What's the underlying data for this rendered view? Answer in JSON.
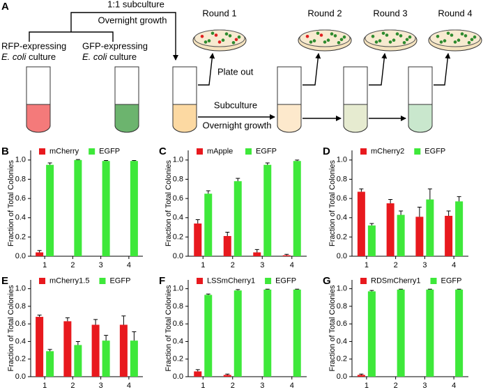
{
  "diagram": {
    "panel_label": "A",
    "top_label": "1:1 subculture",
    "top_sub": "Overnight growth",
    "rfp_label": [
      "RFP-expressing",
      "E. coli",
      "culture"
    ],
    "gfp_label": [
      "GFP-expressing",
      "E. coli",
      "culture"
    ],
    "plate_out": "Plate out",
    "subculture": "Subculture",
    "overnight": "Overnight growth",
    "rounds": [
      "Round 1",
      "Round 2",
      "Round 3",
      "Round 4"
    ]
  },
  "chart_data": [
    {
      "type": "bar",
      "panel_label": "B",
      "ylabel": "Fraction of Total Colonies",
      "categories": [
        "1",
        "2",
        "3",
        "4"
      ],
      "series": [
        {
          "name": "mCherry",
          "color": "#e8191e",
          "values": [
            0.04,
            0,
            0,
            0
          ],
          "errors": [
            0.02,
            0,
            0,
            0
          ]
        },
        {
          "name": "EGFP",
          "color": "#3ee83a",
          "values": [
            0.95,
            1.0,
            0.99,
            0.99
          ],
          "errors": [
            0.02,
            0.005,
            0.005,
            0.005
          ]
        }
      ],
      "ylim": [
        0,
        1.1
      ],
      "yticks": [
        {
          "value": 0,
          "label": "0.0"
        },
        0.2,
        0.4,
        0.6,
        0.8,
        {
          "value": 1,
          "label": "1.0"
        }
      ]
    },
    {
      "type": "bar",
      "panel_label": "C",
      "ylabel": "Fraction of Total Colonies",
      "categories": [
        "1",
        "2",
        "3",
        "4"
      ],
      "series": [
        {
          "name": "mApple",
          "color": "#e8191e",
          "values": [
            0.34,
            0.21,
            0.04,
            0.01
          ],
          "errors": [
            0.04,
            0.04,
            0.03,
            0.01
          ]
        },
        {
          "name": "EGFP",
          "color": "#3ee83a",
          "values": [
            0.65,
            0.78,
            0.95,
            0.99
          ],
          "errors": [
            0.03,
            0.03,
            0.02,
            0.01
          ]
        }
      ],
      "ylim": [
        0,
        1.1
      ],
      "yticks": [
        {
          "value": 0,
          "label": "0.0"
        },
        0.2,
        0.4,
        0.6,
        0.8,
        {
          "value": 1,
          "label": "1.0"
        }
      ]
    },
    {
      "type": "bar",
      "panel_label": "D",
      "ylabel": "Fraction of Total Colonies",
      "categories": [
        "1",
        "2",
        "3",
        "4"
      ],
      "series": [
        {
          "name": "mCherry2",
          "color": "#e8191e",
          "values": [
            0.67,
            0.55,
            0.41,
            0.42
          ],
          "errors": [
            0.03,
            0.04,
            0.1,
            0.05
          ]
        },
        {
          "name": "EGFP",
          "color": "#3ee83a",
          "values": [
            0.32,
            0.43,
            0.59,
            0.57
          ],
          "errors": [
            0.02,
            0.04,
            0.11,
            0.05
          ]
        }
      ],
      "ylim": [
        0,
        1.1
      ],
      "yticks": [
        {
          "value": 0,
          "label": "0.0"
        },
        0.2,
        0.4,
        0.6,
        0.8,
        {
          "value": 1,
          "label": "1.0"
        }
      ]
    },
    {
      "type": "bar",
      "panel_label": "E",
      "ylabel": "Fraction of Total Colonies",
      "categories": [
        "1",
        "2",
        "3",
        "4"
      ],
      "series": [
        {
          "name": "mCherry1.5",
          "color": "#e8191e",
          "values": [
            0.68,
            0.63,
            0.59,
            0.59
          ],
          "errors": [
            0.02,
            0.04,
            0.06,
            0.1
          ]
        },
        {
          "name": "EGFP",
          "color": "#3ee83a",
          "values": [
            0.29,
            0.36,
            0.41,
            0.41
          ],
          "errors": [
            0.02,
            0.04,
            0.06,
            0.1
          ]
        }
      ],
      "ylim": [
        0,
        1.1
      ],
      "yticks": [
        {
          "value": 0,
          "label": "0.0"
        },
        0.2,
        0.4,
        0.6,
        0.8,
        {
          "value": 1,
          "label": "1.0"
        }
      ]
    },
    {
      "type": "bar",
      "panel_label": "F",
      "ylabel": "Fraction of Total Colonies",
      "categories": [
        "1",
        "2",
        "3",
        "4"
      ],
      "series": [
        {
          "name": "LSSmCherry1",
          "color": "#e8191e",
          "values": [
            0.06,
            0.02,
            0,
            0
          ],
          "errors": [
            0.02,
            0.01,
            0,
            0
          ]
        },
        {
          "name": "EGFP",
          "color": "#3ee83a",
          "values": [
            0.93,
            0.98,
            0.99,
            0.99
          ],
          "errors": [
            0.01,
            0.01,
            0.005,
            0.005
          ]
        }
      ],
      "ylim": [
        0,
        1.1
      ],
      "yticks": [
        {
          "value": 0,
          "label": "0.0"
        },
        0.2,
        0.4,
        0.6,
        0.8,
        {
          "value": 1,
          "label": "1.0"
        }
      ]
    },
    {
      "type": "bar",
      "panel_label": "G",
      "ylabel": "Fraction of Total Colonies",
      "categories": [
        "1",
        "2",
        "3",
        "4"
      ],
      "series": [
        {
          "name": "RDSmCherry1",
          "color": "#e8191e",
          "values": [
            0.02,
            0,
            0,
            0
          ],
          "errors": [
            0.01,
            0,
            0,
            0
          ]
        },
        {
          "name": "EGFP",
          "color": "#3ee83a",
          "values": [
            0.97,
            0.99,
            0.99,
            0.99
          ],
          "errors": [
            0.01,
            0.005,
            0.005,
            0.005
          ]
        }
      ],
      "ylim": [
        0,
        1.1
      ],
      "yticks": [
        {
          "value": 0,
          "label": "0.0"
        },
        0.2,
        0.4,
        0.6,
        0.8,
        {
          "value": 1,
          "label": "1.0"
        }
      ]
    }
  ]
}
